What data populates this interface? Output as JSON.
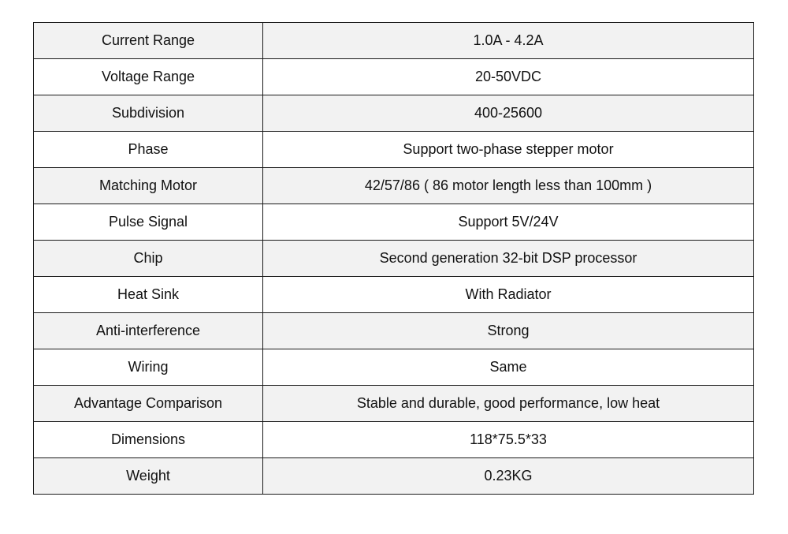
{
  "spec_table": {
    "rows": [
      {
        "label": "Current Range",
        "value": "1.0A - 4.2A"
      },
      {
        "label": "Voltage Range",
        "value": "20-50VDC"
      },
      {
        "label": "Subdivision",
        "value": "400-25600"
      },
      {
        "label": "Phase",
        "value": "Support two-phase stepper motor"
      },
      {
        "label": "Matching Motor",
        "value": "42/57/86 ( 86 motor length less than 100mm )"
      },
      {
        "label": "Pulse Signal",
        "value": "Support 5V/24V"
      },
      {
        "label": "Chip",
        "value": "Second generation 32-bit DSP processor"
      },
      {
        "label": "Heat Sink",
        "value": "With Radiator"
      },
      {
        "label": "Anti-interference",
        "value": "Strong"
      },
      {
        "label": "Wiring",
        "value": "Same"
      },
      {
        "label": "Advantage Comparison",
        "value": "Stable and durable, good performance, low heat"
      },
      {
        "label": "Dimensions",
        "value": "118*75.5*33"
      },
      {
        "label": "Weight",
        "value": "0.23KG"
      }
    ]
  }
}
